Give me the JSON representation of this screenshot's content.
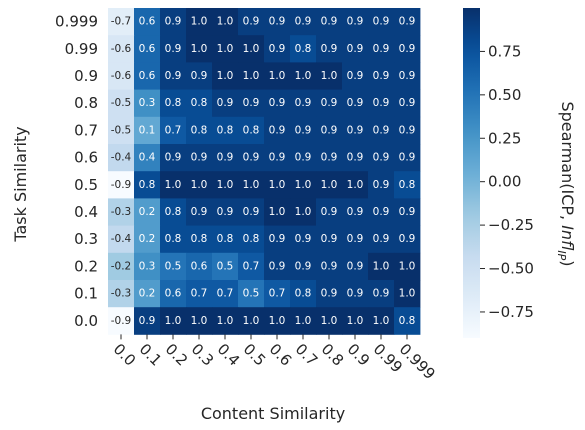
{
  "chart_data": {
    "type": "heatmap",
    "title": "",
    "xlabel": "Content Similarity",
    "ylabel": "Task Similarity",
    "x_categories": [
      "0.0",
      "0.1",
      "0.2",
      "0.3",
      "0.4",
      "0.5",
      "0.6",
      "0.7",
      "0.8",
      "0.9",
      "0.99",
      "0.999"
    ],
    "y_categories": [
      "0.999",
      "0.99",
      "0.9",
      "0.8",
      "0.7",
      "0.6",
      "0.5",
      "0.4",
      "0.3",
      "0.2",
      "0.1",
      "0.0"
    ],
    "values": [
      [
        -0.7,
        0.6,
        0.9,
        1.0,
        1.0,
        0.9,
        0.9,
        0.9,
        0.9,
        0.9,
        0.9,
        0.9
      ],
      [
        -0.6,
        0.6,
        0.9,
        1.0,
        1.0,
        1.0,
        0.9,
        0.8,
        0.9,
        0.9,
        0.9,
        0.9
      ],
      [
        -0.6,
        0.6,
        0.9,
        0.9,
        1.0,
        1.0,
        1.0,
        1.0,
        1.0,
        0.9,
        0.9,
        0.9
      ],
      [
        -0.5,
        0.3,
        0.8,
        0.8,
        0.9,
        0.9,
        0.9,
        0.9,
        0.9,
        0.9,
        0.9,
        0.9
      ],
      [
        -0.5,
        0.1,
        0.7,
        0.8,
        0.8,
        0.8,
        0.9,
        0.9,
        0.9,
        0.9,
        0.9,
        0.9
      ],
      [
        -0.4,
        0.4,
        0.9,
        0.9,
        0.9,
        0.9,
        0.9,
        0.9,
        0.9,
        0.9,
        0.9,
        0.9
      ],
      [
        -0.9,
        0.8,
        1.0,
        1.0,
        1.0,
        1.0,
        1.0,
        1.0,
        1.0,
        1.0,
        0.9,
        0.8
      ],
      [
        -0.3,
        0.2,
        0.8,
        0.9,
        0.9,
        0.9,
        1.0,
        1.0,
        0.9,
        0.9,
        0.9,
        0.9
      ],
      [
        -0.4,
        0.2,
        0.8,
        0.8,
        0.8,
        0.8,
        0.9,
        0.9,
        0.9,
        0.9,
        0.9,
        0.9
      ],
      [
        -0.2,
        0.3,
        0.5,
        0.6,
        0.5,
        0.7,
        0.9,
        0.9,
        0.9,
        0.9,
        1.0,
        1.0
      ],
      [
        -0.3,
        0.2,
        0.6,
        0.7,
        0.7,
        0.5,
        0.7,
        0.8,
        0.9,
        0.9,
        0.9,
        1.0
      ],
      [
        -0.9,
        0.9,
        1.0,
        1.0,
        1.0,
        1.0,
        1.0,
        1.0,
        1.0,
        1.0,
        1.0,
        0.8
      ]
    ],
    "value_range": [
      -0.9,
      1.0
    ],
    "colormap": "Blues",
    "colormap_colors": [
      "#f7fbff",
      "#deebf7",
      "#c6dbef",
      "#9ecae1",
      "#6baed6",
      "#4292c6",
      "#2171b5",
      "#08519c",
      "#08306b"
    ],
    "annotations": true,
    "grid": false,
    "colorbar": {
      "label_main": "Spearman(ICP, ",
      "label_italic": "Infl",
      "label_sub": "IP",
      "label_close": ")",
      "ticks": [
        "0.75",
        "0.50",
        "0.25",
        "0.00",
        "−0.25",
        "−0.50",
        "−0.75"
      ],
      "tick_values": [
        0.75,
        0.5,
        0.25,
        0.0,
        -0.25,
        -0.5,
        -0.75
      ]
    }
  }
}
